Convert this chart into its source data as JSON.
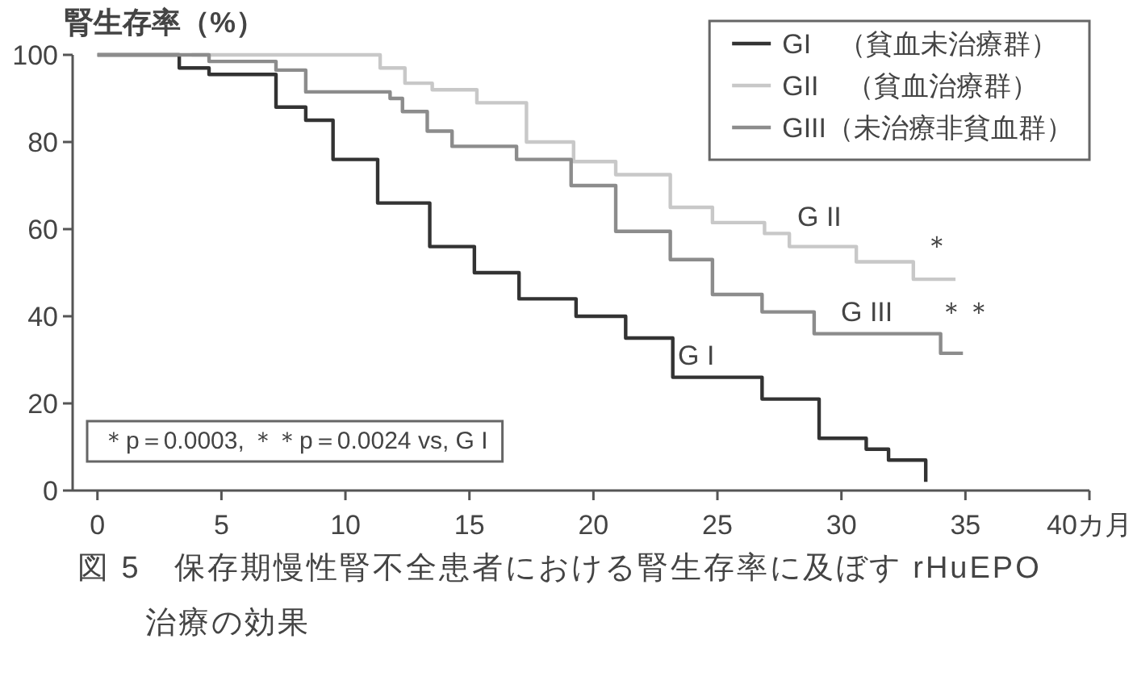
{
  "chart_data": {
    "type": "step",
    "ylabel": "腎生存率（%）",
    "xlim": [
      -1,
      40
    ],
    "ylim": [
      0,
      100
    ],
    "xticks": [
      0,
      5,
      10,
      15,
      20,
      25,
      30,
      35,
      {
        "value": 40,
        "label": "40カ月"
      }
    ],
    "yticks": [
      0,
      20,
      40,
      60,
      80,
      100
    ],
    "grid": false,
    "legend": "top right",
    "marker": "none",
    "line_style": "solid",
    "series": [
      {
        "name": "GI　（貧血未治療群）",
        "color": "#333333",
        "x": [
          0,
          3.3,
          4.5,
          7.2,
          8.4,
          9.5,
          11.3,
          13.4,
          15.2,
          17.0,
          19.3,
          21.3,
          23.2,
          26.8,
          29.1,
          31.0,
          31.9,
          33.4
        ],
        "values": [
          100,
          97,
          95.5,
          88,
          85,
          76,
          66,
          56,
          50,
          44,
          40,
          35,
          26,
          21,
          12,
          9.5,
          7,
          2
        ]
      },
      {
        "name": "GII　（貧血治療群）",
        "color": "#c8c8c8",
        "x": [
          3.8,
          11.4,
          12.4,
          13.5,
          15.3,
          17.3,
          19.2,
          20.9,
          23.1,
          24.8,
          26.9,
          27.9,
          30.6,
          32.9,
          34.6
        ],
        "values": [
          100,
          97,
          93.5,
          92,
          89,
          80,
          75.5,
          72.5,
          65,
          61.5,
          59,
          56,
          52.5,
          48.5,
          48.5
        ]
      },
      {
        "name": "GIII（未治療非貧血群）",
        "color": "#8c8c8c",
        "x": [
          0,
          4.5,
          7.2,
          8.4,
          11.8,
          12.3,
          13.3,
          14.3,
          16.9,
          19.1,
          20.9,
          23.1,
          24.8,
          26.8,
          28.9,
          34.0,
          34.9
        ],
        "values": [
          100,
          98.5,
          96.5,
          91.5,
          90,
          87,
          82.5,
          79,
          76,
          70,
          59.5,
          53,
          45,
          41,
          36,
          31.5,
          31.5
        ]
      }
    ],
    "annotations": [
      "G II",
      "＊",
      "G III",
      "＊＊",
      "G I",
      "＊p＝0.0003, ＊＊p＝0.0024 vs, G I",
      "図 5　保存期慢性腎不全患者における腎生存率に及ぼす rHuEPO 治療の効果"
    ]
  }
}
